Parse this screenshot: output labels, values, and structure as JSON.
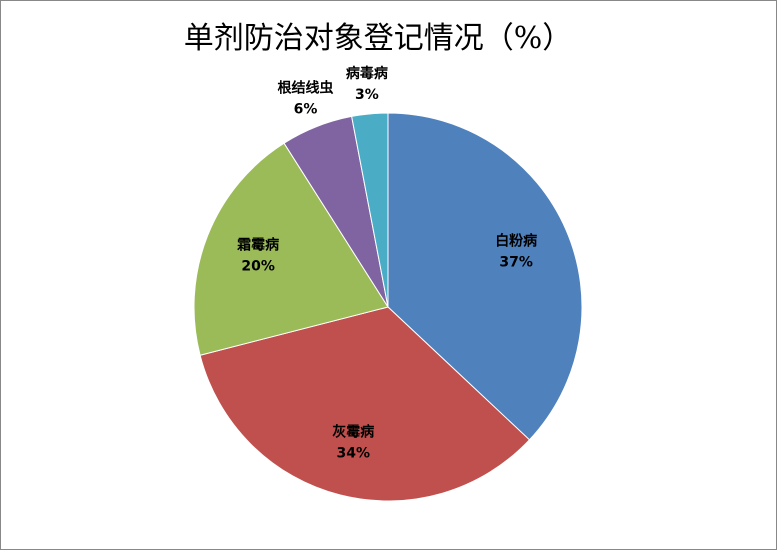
{
  "chart_data": {
    "type": "pie",
    "title": "单剂防治对象登记情况（%）",
    "categories": [
      "白粉病",
      "灰霉病",
      "霜霉病",
      "根结线虫",
      "病毒病"
    ],
    "values": [
      37,
      34,
      20,
      6,
      3
    ],
    "value_labels": [
      "37%",
      "34%",
      "20%",
      "6%",
      "3%"
    ],
    "colors": [
      "#4f81bd",
      "#c0504d",
      "#9bbb59",
      "#8064a2",
      "#4bacc6"
    ]
  }
}
